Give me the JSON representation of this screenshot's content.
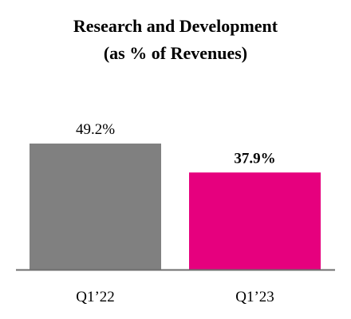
{
  "chart_data": {
    "type": "bar",
    "title_lines": [
      "Research and Development",
      "(as % of Revenues)"
    ],
    "categories": [
      "Q1’22",
      "Q1’23"
    ],
    "values": [
      49.2,
      37.9
    ],
    "data_labels": [
      "49.2%",
      "37.9%"
    ],
    "bold_labels": [
      false,
      true
    ],
    "colors": [
      "#808080",
      "#e6007e"
    ],
    "axis_color": "#6e6e6e",
    "ylim": [
      0,
      60
    ],
    "grid": false,
    "legend": "none"
  }
}
